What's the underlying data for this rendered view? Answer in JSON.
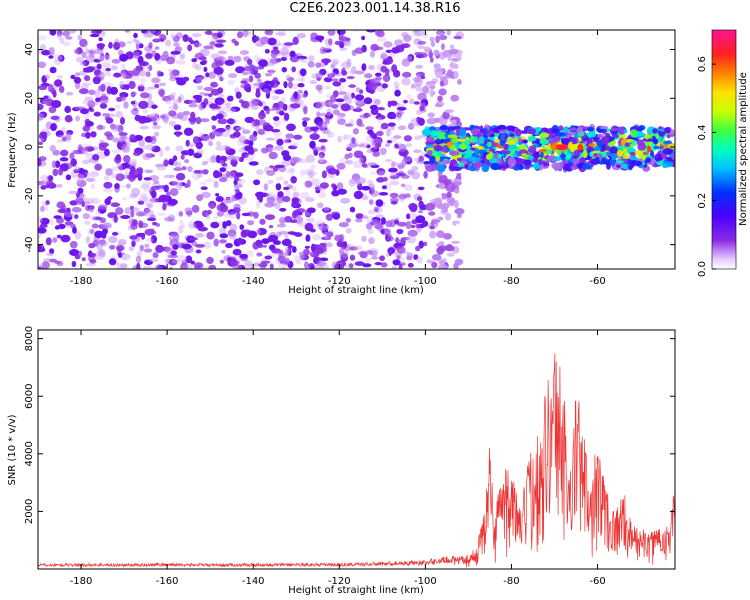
{
  "figure": {
    "title": "C2E6.2023.001.14.38.R16"
  },
  "colors": {
    "snr_line": "#ee3333",
    "axes": "#000000",
    "background": "#ffffff"
  },
  "chart_data": [
    {
      "type": "heatmap",
      "title": "C2E6.2023.001.14.38.R16",
      "xlabel": "Height of straight line (km)",
      "ylabel": "Frequency (Hz)",
      "xlim": [
        -190,
        -42
      ],
      "ylim": [
        -50,
        48
      ],
      "x_ticks": [
        -180,
        -160,
        -140,
        -120,
        -100,
        -80,
        -60
      ],
      "y_ticks": [
        -40,
        -20,
        0,
        20,
        40
      ],
      "x_tick_labels": [
        "-180",
        "-160",
        "-140",
        "-120",
        "-100",
        "-80",
        "-60"
      ],
      "y_tick_labels": [
        "-40",
        "-20",
        "0",
        "20",
        "40"
      ],
      "colorbar": {
        "label": "Normalized spectral amplitude",
        "range": [
          0,
          0.7
        ],
        "ticks": [
          0.0,
          0.2,
          0.4,
          0.6
        ],
        "tick_labels": [
          "0.0",
          "0.2",
          "0.4",
          "0.6"
        ],
        "colormap": "rainbow"
      },
      "regions": [
        {
          "x_range": [
            -190,
            -100
          ],
          "freq_range": [
            -50,
            48
          ],
          "amplitude_range": [
            0.0,
            0.1
          ],
          "description_level": "noise"
        },
        {
          "x_range": [
            -100,
            -92
          ],
          "freq_range": [
            -50,
            48
          ],
          "amplitude_range": [
            0.0,
            0.05
          ],
          "description_level": "sparse noise"
        },
        {
          "x_range": [
            -100,
            -42
          ],
          "freq_range": [
            -9,
            8
          ],
          "amplitude_range": [
            0.05,
            0.7
          ],
          "description_level": "signal band"
        }
      ],
      "peak": {
        "x": -68,
        "freq": 0,
        "amplitude": 0.7
      }
    },
    {
      "type": "line",
      "xlabel": "Height of straight line (km)",
      "ylabel": "SNR (10 * v/v)",
      "xlim": [
        -190,
        -42
      ],
      "ylim": [
        0,
        8300
      ],
      "x_ticks": [
        -180,
        -160,
        -140,
        -120,
        -100,
        -80,
        -60
      ],
      "y_ticks": [
        2000,
        4000,
        6000,
        8000
      ],
      "x_tick_labels": [
        "-180",
        "-160",
        "-140",
        "-120",
        "-100",
        "-80",
        "-60"
      ],
      "y_tick_labels": [
        "2000",
        "4000",
        "6000",
        "8000"
      ],
      "series": [
        {
          "x": [
            -190,
            -180,
            -170,
            -160,
            -150,
            -140,
            -130,
            -120,
            -110,
            -100,
            -95,
            -90,
            -88,
            -86,
            -85,
            -84,
            -83,
            -80,
            -78,
            -76,
            -74,
            -72,
            -70,
            -69,
            -68,
            -66,
            -65,
            -64,
            -62,
            -60,
            -58,
            -56,
            -54,
            -52,
            -50,
            -48,
            -46,
            -44,
            -42
          ],
          "y": [
            150,
            160,
            150,
            170,
            150,
            160,
            170,
            160,
            200,
            250,
            350,
            500,
            800,
            2500,
            4700,
            1500,
            3200,
            3700,
            2000,
            3900,
            4800,
            6400,
            8000,
            7500,
            6500,
            3200,
            6800,
            5500,
            3500,
            4400,
            3000,
            2000,
            2800,
            1500,
            1500,
            1200,
            1600,
            1500,
            2800
          ]
        }
      ]
    }
  ]
}
